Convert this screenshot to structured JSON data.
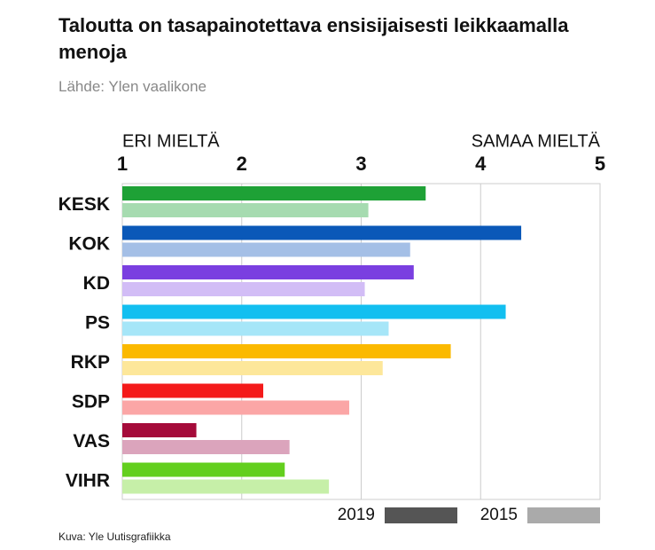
{
  "chart_data": {
    "type": "bar",
    "orientation": "horizontal",
    "title": "Taloutta on tasapainotettava ensisijaisesti leikkaamalla menoja",
    "subtitle": "Lähde: Ylen vaalikone",
    "x_label_left": "ERI MIELTÄ",
    "x_label_right": "SAMAA MIELTÄ",
    "source": "Kuva: Yle Uutisgrafiikka",
    "categories": [
      "KESK",
      "KOK",
      "KD",
      "PS",
      "RKP",
      "SDP",
      "VAS",
      "VIHR"
    ],
    "series": [
      {
        "name": "2019",
        "color": "#555555",
        "colors": [
          "#1ea136",
          "#0a58b8",
          "#7a3fe0",
          "#12bff0",
          "#fbb900",
          "#f41a1a",
          "#a50b3a",
          "#63cf1e"
        ],
        "values": [
          3.54,
          4.34,
          3.44,
          4.21,
          3.75,
          2.18,
          1.62,
          2.36
        ]
      },
      {
        "name": "2015",
        "color": "#aaaaaa",
        "colors": [
          "#a6dbb0",
          "#a4bfe6",
          "#d2bdf6",
          "#a6e6f8",
          "#fde79a",
          "#fba6a6",
          "#dba4bc",
          "#c6efa8"
        ],
        "values": [
          3.06,
          3.41,
          3.03,
          3.23,
          3.18,
          2.9,
          2.4,
          2.73
        ]
      }
    ],
    "xlim": [
      1,
      5
    ],
    "xticks": [
      1,
      2,
      3,
      4,
      5
    ],
    "grid": true
  }
}
